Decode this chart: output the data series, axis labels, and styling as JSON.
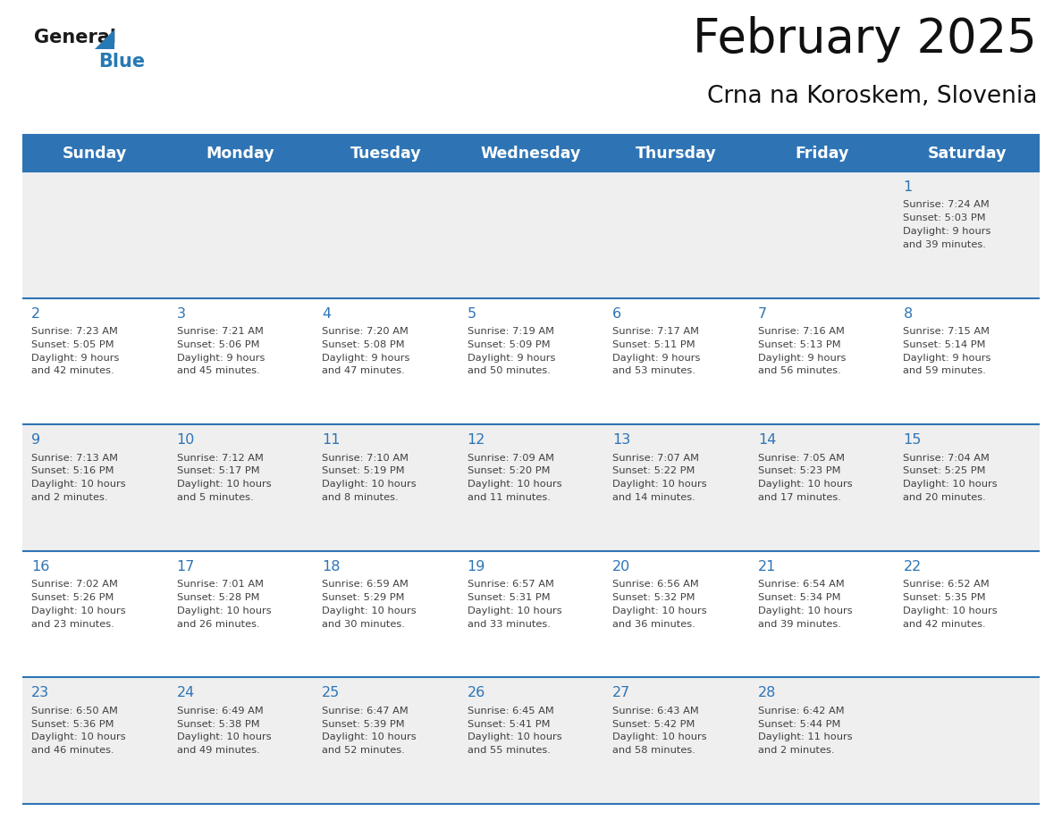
{
  "title": "February 2025",
  "subtitle": "Crna na Koroskem, Slovenia",
  "header_bg": "#2E74B5",
  "header_text_color": "#FFFFFF",
  "day_names": [
    "Sunday",
    "Monday",
    "Tuesday",
    "Wednesday",
    "Thursday",
    "Friday",
    "Saturday"
  ],
  "cell_bg_odd": "#EFEFEF",
  "cell_bg_even": "#FFFFFF",
  "date_text_color": "#2E74B5",
  "info_text_color": "#404040",
  "border_color": "#2E74B5",
  "logo_color_black": "#1a1a1a",
  "logo_color_blue": "#2779B5",
  "num_rows": 5,
  "num_cols": 7,
  "days": [
    {
      "date": 1,
      "col": 6,
      "row": 0,
      "sunrise": "7:24 AM",
      "sunset": "5:03 PM",
      "daylight": "9 hours and 39 minutes."
    },
    {
      "date": 2,
      "col": 0,
      "row": 1,
      "sunrise": "7:23 AM",
      "sunset": "5:05 PM",
      "daylight": "9 hours and 42 minutes."
    },
    {
      "date": 3,
      "col": 1,
      "row": 1,
      "sunrise": "7:21 AM",
      "sunset": "5:06 PM",
      "daylight": "9 hours and 45 minutes."
    },
    {
      "date": 4,
      "col": 2,
      "row": 1,
      "sunrise": "7:20 AM",
      "sunset": "5:08 PM",
      "daylight": "9 hours and 47 minutes."
    },
    {
      "date": 5,
      "col": 3,
      "row": 1,
      "sunrise": "7:19 AM",
      "sunset": "5:09 PM",
      "daylight": "9 hours and 50 minutes."
    },
    {
      "date": 6,
      "col": 4,
      "row": 1,
      "sunrise": "7:17 AM",
      "sunset": "5:11 PM",
      "daylight": "9 hours and 53 minutes."
    },
    {
      "date": 7,
      "col": 5,
      "row": 1,
      "sunrise": "7:16 AM",
      "sunset": "5:13 PM",
      "daylight": "9 hours and 56 minutes."
    },
    {
      "date": 8,
      "col": 6,
      "row": 1,
      "sunrise": "7:15 AM",
      "sunset": "5:14 PM",
      "daylight": "9 hours and 59 minutes."
    },
    {
      "date": 9,
      "col": 0,
      "row": 2,
      "sunrise": "7:13 AM",
      "sunset": "5:16 PM",
      "daylight": "10 hours and 2 minutes."
    },
    {
      "date": 10,
      "col": 1,
      "row": 2,
      "sunrise": "7:12 AM",
      "sunset": "5:17 PM",
      "daylight": "10 hours and 5 minutes."
    },
    {
      "date": 11,
      "col": 2,
      "row": 2,
      "sunrise": "7:10 AM",
      "sunset": "5:19 PM",
      "daylight": "10 hours and 8 minutes."
    },
    {
      "date": 12,
      "col": 3,
      "row": 2,
      "sunrise": "7:09 AM",
      "sunset": "5:20 PM",
      "daylight": "10 hours and 11 minutes."
    },
    {
      "date": 13,
      "col": 4,
      "row": 2,
      "sunrise": "7:07 AM",
      "sunset": "5:22 PM",
      "daylight": "10 hours and 14 minutes."
    },
    {
      "date": 14,
      "col": 5,
      "row": 2,
      "sunrise": "7:05 AM",
      "sunset": "5:23 PM",
      "daylight": "10 hours and 17 minutes."
    },
    {
      "date": 15,
      "col": 6,
      "row": 2,
      "sunrise": "7:04 AM",
      "sunset": "5:25 PM",
      "daylight": "10 hours and 20 minutes."
    },
    {
      "date": 16,
      "col": 0,
      "row": 3,
      "sunrise": "7:02 AM",
      "sunset": "5:26 PM",
      "daylight": "10 hours and 23 minutes."
    },
    {
      "date": 17,
      "col": 1,
      "row": 3,
      "sunrise": "7:01 AM",
      "sunset": "5:28 PM",
      "daylight": "10 hours and 26 minutes."
    },
    {
      "date": 18,
      "col": 2,
      "row": 3,
      "sunrise": "6:59 AM",
      "sunset": "5:29 PM",
      "daylight": "10 hours and 30 minutes."
    },
    {
      "date": 19,
      "col": 3,
      "row": 3,
      "sunrise": "6:57 AM",
      "sunset": "5:31 PM",
      "daylight": "10 hours and 33 minutes."
    },
    {
      "date": 20,
      "col": 4,
      "row": 3,
      "sunrise": "6:56 AM",
      "sunset": "5:32 PM",
      "daylight": "10 hours and 36 minutes."
    },
    {
      "date": 21,
      "col": 5,
      "row": 3,
      "sunrise": "6:54 AM",
      "sunset": "5:34 PM",
      "daylight": "10 hours and 39 minutes."
    },
    {
      "date": 22,
      "col": 6,
      "row": 3,
      "sunrise": "6:52 AM",
      "sunset": "5:35 PM",
      "daylight": "10 hours and 42 minutes."
    },
    {
      "date": 23,
      "col": 0,
      "row": 4,
      "sunrise": "6:50 AM",
      "sunset": "5:36 PM",
      "daylight": "10 hours and 46 minutes."
    },
    {
      "date": 24,
      "col": 1,
      "row": 4,
      "sunrise": "6:49 AM",
      "sunset": "5:38 PM",
      "daylight": "10 hours and 49 minutes."
    },
    {
      "date": 25,
      "col": 2,
      "row": 4,
      "sunrise": "6:47 AM",
      "sunset": "5:39 PM",
      "daylight": "10 hours and 52 minutes."
    },
    {
      "date": 26,
      "col": 3,
      "row": 4,
      "sunrise": "6:45 AM",
      "sunset": "5:41 PM",
      "daylight": "10 hours and 55 minutes."
    },
    {
      "date": 27,
      "col": 4,
      "row": 4,
      "sunrise": "6:43 AM",
      "sunset": "5:42 PM",
      "daylight": "10 hours and 58 minutes."
    },
    {
      "date": 28,
      "col": 5,
      "row": 4,
      "sunrise": "6:42 AM",
      "sunset": "5:44 PM",
      "daylight": "11 hours and 2 minutes."
    }
  ]
}
